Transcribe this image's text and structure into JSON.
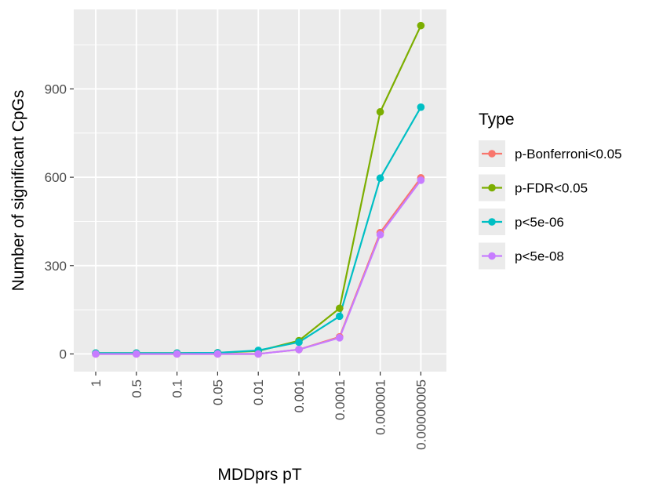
{
  "chart_data": {
    "type": "line",
    "xlabel": "MDDprs pT",
    "ylabel": "Number of significant CpGs",
    "categories": [
      "1",
      "0.5",
      "0.1",
      "0.05",
      "0.01",
      "0.001",
      "0.0001",
      "0.000001",
      "0.00000005"
    ],
    "y_ticks": [
      "0",
      "300",
      "600",
      "900"
    ],
    "ylim": [
      -60,
      1170
    ],
    "grid": true,
    "panel_background": "#ebebeb",
    "legend": {
      "title": "Type",
      "placement": "right"
    },
    "series": [
      {
        "name": "p-Bonferroni<0.05",
        "color": "#F8766D",
        "values": [
          0,
          0,
          0,
          0,
          0,
          15,
          58,
          412,
          598
        ]
      },
      {
        "name": "p-FDR<0.05",
        "color": "#7CAE00",
        "values": [
          3,
          3,
          3,
          4,
          10,
          45,
          155,
          822,
          1115
        ]
      },
      {
        "name": "p<5e-06",
        "color": "#00BFC4",
        "values": [
          3,
          3,
          3,
          4,
          12,
          40,
          128,
          597,
          838
        ]
      },
      {
        "name": "p<5e-08",
        "color": "#C77CFF",
        "values": [
          0,
          0,
          0,
          0,
          0,
          15,
          55,
          405,
          590
        ]
      }
    ]
  }
}
